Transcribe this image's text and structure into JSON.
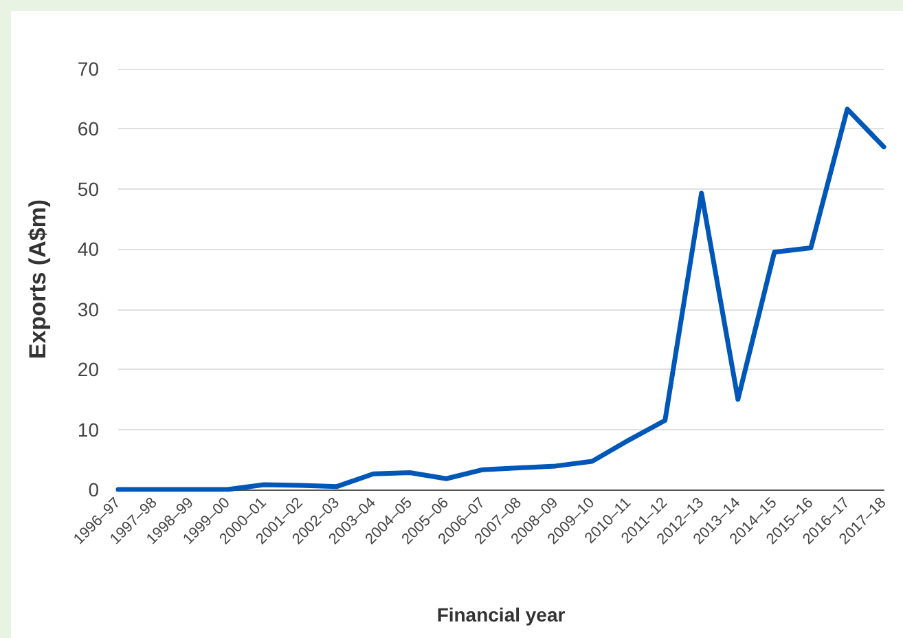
{
  "chart_data": {
    "type": "line",
    "xlabel": "Financial year",
    "ylabel": "Exports (A$m)",
    "categories": [
      "1996–97",
      "1997–98",
      "1998–99",
      "1999–00",
      "2000–01",
      "2001–02",
      "2002–03",
      "2003–04",
      "2004–05",
      "2005–06",
      "2006–07",
      "2007–08",
      "2008–09",
      "2009–10",
      "2010–11",
      "2011–12",
      "2012–13",
      "2013–14",
      "2014–15",
      "2015–16",
      "2016–17",
      "2017–18"
    ],
    "series": [
      {
        "color": "#0057b8",
        "values": [
          0,
          0,
          0,
          0,
          0.8,
          0.7,
          0.5,
          2.6,
          2.8,
          1.8,
          3.3,
          3.6,
          3.9,
          4.7,
          8.2,
          11.5,
          49.3,
          15,
          39.5,
          40.2,
          63.3,
          57
        ]
      }
    ],
    "ylim": [
      0,
      70
    ],
    "yticks": [
      0,
      10,
      20,
      30,
      40,
      50,
      60,
      70
    ],
    "grid": "y",
    "marker": "none",
    "line_style": "solid"
  }
}
